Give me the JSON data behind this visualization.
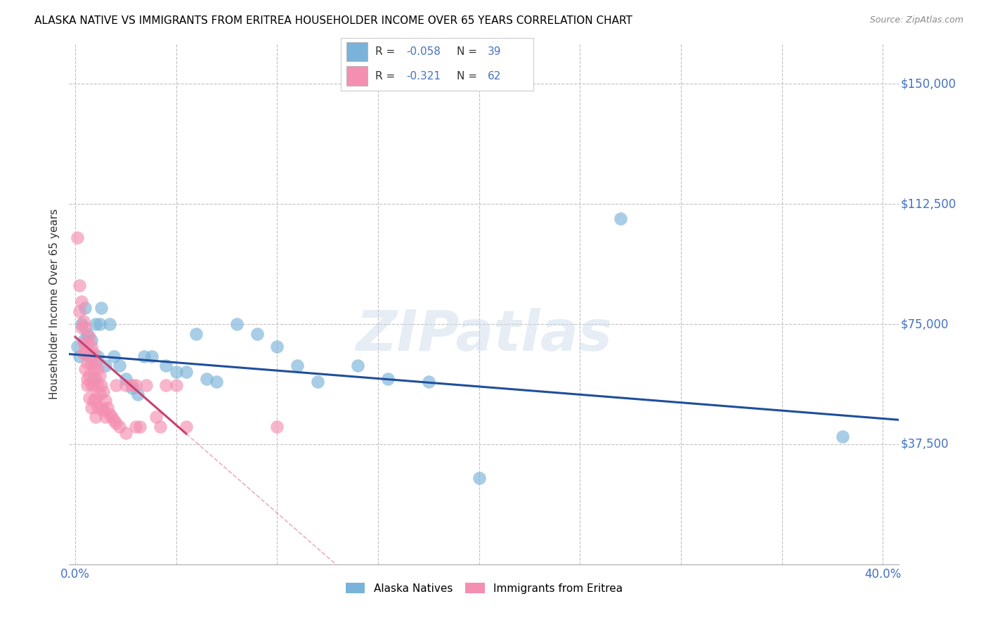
{
  "title": "ALASKA NATIVE VS IMMIGRANTS FROM ERITREA HOUSEHOLDER INCOME OVER 65 YEARS CORRELATION CHART",
  "source": "Source: ZipAtlas.com",
  "ylabel": "Householder Income Over 65 years",
  "ylim": [
    0,
    162500
  ],
  "xlim": [
    -0.003,
    0.408
  ],
  "yticks": [
    0,
    37500,
    75000,
    112500,
    150000
  ],
  "ytick_labels": [
    "",
    "$37,500",
    "$75,000",
    "$112,500",
    "$150,000"
  ],
  "xticks": [
    0.0,
    0.05,
    0.1,
    0.15,
    0.2,
    0.25,
    0.3,
    0.35,
    0.4
  ],
  "alaska_r": -0.058,
  "alaska_n": 39,
  "eritrea_r": -0.321,
  "eritrea_n": 62,
  "alaska_color": "#7ab3d9",
  "eritrea_color": "#f48fb1",
  "alaska_line_color": "#1f4e9c",
  "eritrea_line_color": "#c94070",
  "eritrea_line_color_dashed": "#d47090",
  "watermark": "ZIPatlas",
  "alaska_points": [
    [
      0.001,
      68000
    ],
    [
      0.002,
      65000
    ],
    [
      0.003,
      75000
    ],
    [
      0.004,
      70000
    ],
    [
      0.005,
      80000
    ],
    [
      0.006,
      72000
    ],
    [
      0.007,
      65000
    ],
    [
      0.008,
      70000
    ],
    [
      0.009,
      58000
    ],
    [
      0.01,
      75000
    ],
    [
      0.011,
      65000
    ],
    [
      0.012,
      75000
    ],
    [
      0.013,
      80000
    ],
    [
      0.015,
      62000
    ],
    [
      0.017,
      75000
    ],
    [
      0.019,
      65000
    ],
    [
      0.022,
      62000
    ],
    [
      0.025,
      58000
    ],
    [
      0.028,
      55000
    ],
    [
      0.031,
      53000
    ],
    [
      0.034,
      65000
    ],
    [
      0.038,
      65000
    ],
    [
      0.045,
      62000
    ],
    [
      0.05,
      60000
    ],
    [
      0.055,
      60000
    ],
    [
      0.06,
      72000
    ],
    [
      0.065,
      58000
    ],
    [
      0.07,
      57000
    ],
    [
      0.08,
      75000
    ],
    [
      0.09,
      72000
    ],
    [
      0.1,
      68000
    ],
    [
      0.11,
      62000
    ],
    [
      0.12,
      57000
    ],
    [
      0.14,
      62000
    ],
    [
      0.155,
      58000
    ],
    [
      0.175,
      57000
    ],
    [
      0.2,
      27000
    ],
    [
      0.27,
      108000
    ],
    [
      0.38,
      40000
    ]
  ],
  "eritrea_points": [
    [
      0.001,
      102000
    ],
    [
      0.002,
      87000
    ],
    [
      0.002,
      79000
    ],
    [
      0.003,
      74000
    ],
    [
      0.003,
      82000
    ],
    [
      0.004,
      76000
    ],
    [
      0.004,
      69000
    ],
    [
      0.004,
      66000
    ],
    [
      0.005,
      74000
    ],
    [
      0.005,
      66000
    ],
    [
      0.005,
      61000
    ],
    [
      0.006,
      69000
    ],
    [
      0.006,
      63000
    ],
    [
      0.006,
      58000
    ],
    [
      0.006,
      56000
    ],
    [
      0.007,
      71000
    ],
    [
      0.007,
      66000
    ],
    [
      0.007,
      59000
    ],
    [
      0.007,
      52000
    ],
    [
      0.008,
      68000
    ],
    [
      0.008,
      63000
    ],
    [
      0.008,
      56000
    ],
    [
      0.008,
      49000
    ],
    [
      0.009,
      66000
    ],
    [
      0.009,
      61000
    ],
    [
      0.009,
      56000
    ],
    [
      0.009,
      51000
    ],
    [
      0.01,
      63000
    ],
    [
      0.01,
      58000
    ],
    [
      0.01,
      52000
    ],
    [
      0.01,
      46000
    ],
    [
      0.011,
      61000
    ],
    [
      0.011,
      56000
    ],
    [
      0.011,
      49000
    ],
    [
      0.012,
      59000
    ],
    [
      0.012,
      53000
    ],
    [
      0.013,
      56000
    ],
    [
      0.013,
      49000
    ],
    [
      0.014,
      54000
    ],
    [
      0.014,
      48000
    ],
    [
      0.015,
      51000
    ],
    [
      0.015,
      46000
    ],
    [
      0.016,
      49000
    ],
    [
      0.017,
      47000
    ],
    [
      0.018,
      46000
    ],
    [
      0.019,
      45000
    ],
    [
      0.02,
      56000
    ],
    [
      0.02,
      44000
    ],
    [
      0.022,
      43000
    ],
    [
      0.025,
      41000
    ],
    [
      0.025,
      56000
    ],
    [
      0.028,
      56000
    ],
    [
      0.03,
      43000
    ],
    [
      0.03,
      56000
    ],
    [
      0.032,
      43000
    ],
    [
      0.035,
      56000
    ],
    [
      0.04,
      46000
    ],
    [
      0.042,
      43000
    ],
    [
      0.045,
      56000
    ],
    [
      0.05,
      56000
    ],
    [
      0.055,
      43000
    ],
    [
      0.1,
      43000
    ]
  ],
  "title_fontsize": 11,
  "source_fontsize": 9,
  "tick_color": "#4472c4",
  "grid_color": "#bbbbbb",
  "background_color": "#ffffff",
  "alaska_line_slope": -50000,
  "alaska_line_intercept": 65500,
  "eritrea_line_slope": -550000,
  "eritrea_line_intercept": 71000
}
